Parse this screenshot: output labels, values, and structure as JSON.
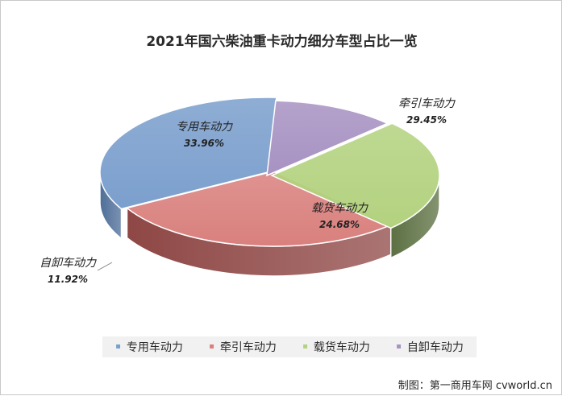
{
  "chart_data": {
    "type": "pie",
    "title": "2021年国六柴油重卡动力细分车型占比一览",
    "slices": [
      {
        "name": "专用车动力",
        "value": 33.96,
        "label": "33.96%",
        "color": "#7b9fcd",
        "side_color": "#4e6e98"
      },
      {
        "name": "牵引车动力",
        "value": 29.45,
        "label": "29.45%",
        "color": "#d9807d",
        "side_color": "#8e4745"
      },
      {
        "name": "载货车动力",
        "value": 24.68,
        "label": "24.68%",
        "color": "#b3d27f",
        "side_color": "#5c7042"
      },
      {
        "name": "自卸车动力",
        "value": 11.92,
        "label": "11.92%",
        "color": "#a792c2",
        "side_color": "#5f517a"
      }
    ],
    "legend_position": "bottom",
    "labels_italic": true
  },
  "credit": "制图：第一商用车网 cvworld.cn"
}
